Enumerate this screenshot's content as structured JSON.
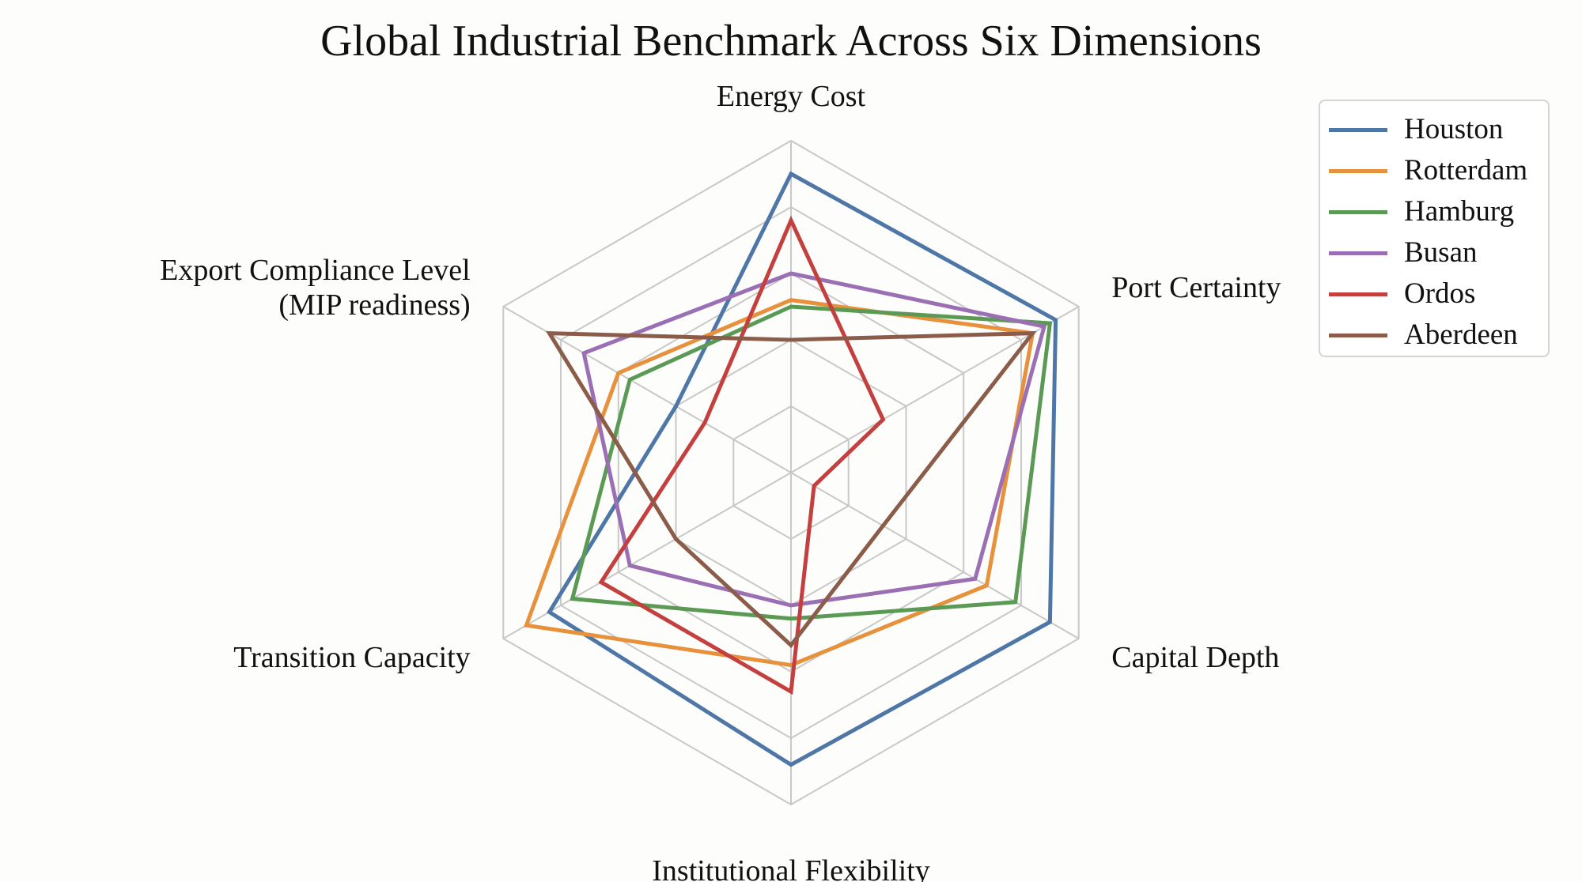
{
  "chart_data": {
    "type": "radar",
    "title": "Global Industrial Benchmark Across Six Dimensions",
    "axes": [
      {
        "label_lines": [
          "Energy Cost"
        ]
      },
      {
        "label_lines": [
          "Port Certainty"
        ]
      },
      {
        "label_lines": [
          "Capital Depth"
        ]
      },
      {
        "label_lines": [
          "Institutional Flexibility"
        ]
      },
      {
        "label_lines": [
          "Transition Capacity"
        ]
      },
      {
        "label_lines": [
          "Export Compliance Level",
          "(MIP readiness)"
        ]
      }
    ],
    "range": [
      0,
      5
    ],
    "grid_levels": 5,
    "grid": true,
    "legend": "top-right",
    "series": [
      {
        "name": "Houston",
        "color": "#4e76a6",
        "values": [
          4.5,
          4.6,
          4.5,
          4.4,
          4.2,
          2.0
        ]
      },
      {
        "name": "Rotterdam",
        "color": "#e8913c",
        "values": [
          2.6,
          4.2,
          3.4,
          2.9,
          4.6,
          3.0
        ]
      },
      {
        "name": "Hamburg",
        "color": "#5a9a55",
        "values": [
          2.5,
          4.5,
          3.9,
          2.2,
          3.8,
          2.8
        ]
      },
      {
        "name": "Busan",
        "color": "#9a6fb4",
        "values": [
          3.0,
          4.4,
          3.2,
          2.0,
          2.8,
          3.6
        ]
      },
      {
        "name": "Ordos",
        "color": "#c4403f",
        "values": [
          3.8,
          1.6,
          0.4,
          3.3,
          3.3,
          1.5
        ]
      },
      {
        "name": "Aberdeen",
        "color": "#8b5c4a",
        "values": [
          2.0,
          4.2,
          1.6,
          2.6,
          2.0,
          4.2
        ]
      }
    ]
  }
}
